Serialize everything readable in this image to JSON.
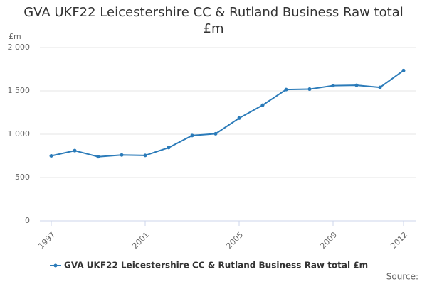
{
  "chart_data": {
    "type": "line",
    "title": "GVA UKF22 Leicestershire CC & Rutland Business Raw total £m",
    "ylabel": "£m",
    "source": "Source:",
    "x": [
      1997,
      1998,
      1999,
      2000,
      2001,
      2002,
      2003,
      2004,
      2005,
      2006,
      2007,
      2008,
      2009,
      2010,
      2011,
      2012
    ],
    "series": [
      {
        "name": "GVA UKF22 Leicestershire CC & Rutland Business Raw total £m",
        "color": "#2b7bb9",
        "values": [
          750,
          810,
          740,
          760,
          755,
          845,
          985,
          1005,
          1185,
          1335,
          1515,
          1520,
          1560,
          1565,
          1540,
          1735
        ]
      }
    ],
    "xlim": [
      1997,
      2012
    ],
    "xticks": [
      1997,
      2001,
      2005,
      2009,
      2012
    ],
    "ylim": [
      0,
      2000
    ],
    "yticks": [
      0,
      500,
      {
        "value": 1000,
        "label": "1 000"
      },
      {
        "value": 1500,
        "label": "1 500"
      },
      {
        "value": 2000,
        "label": "2 000"
      }
    ],
    "grid": true
  }
}
